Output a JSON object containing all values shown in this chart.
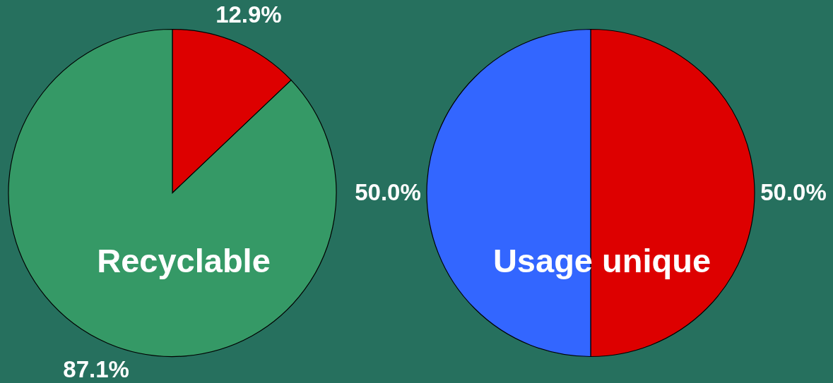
{
  "chart_data": [
    {
      "type": "pie",
      "title": "Recyclable",
      "categories": [
        null,
        null
      ],
      "values": [
        12.9,
        87.1
      ],
      "colors": [
        "#dd0000",
        "#359966"
      ],
      "value_labels": [
        "12.9%",
        "87.1%"
      ]
    },
    {
      "type": "pie",
      "title": "Usage unique",
      "categories": [
        null,
        null
      ],
      "values": [
        50.0,
        50.0
      ],
      "colors": [
        "#dd0000",
        "#3366ff"
      ],
      "value_labels": [
        "50.0%",
        "50.0%"
      ]
    }
  ]
}
